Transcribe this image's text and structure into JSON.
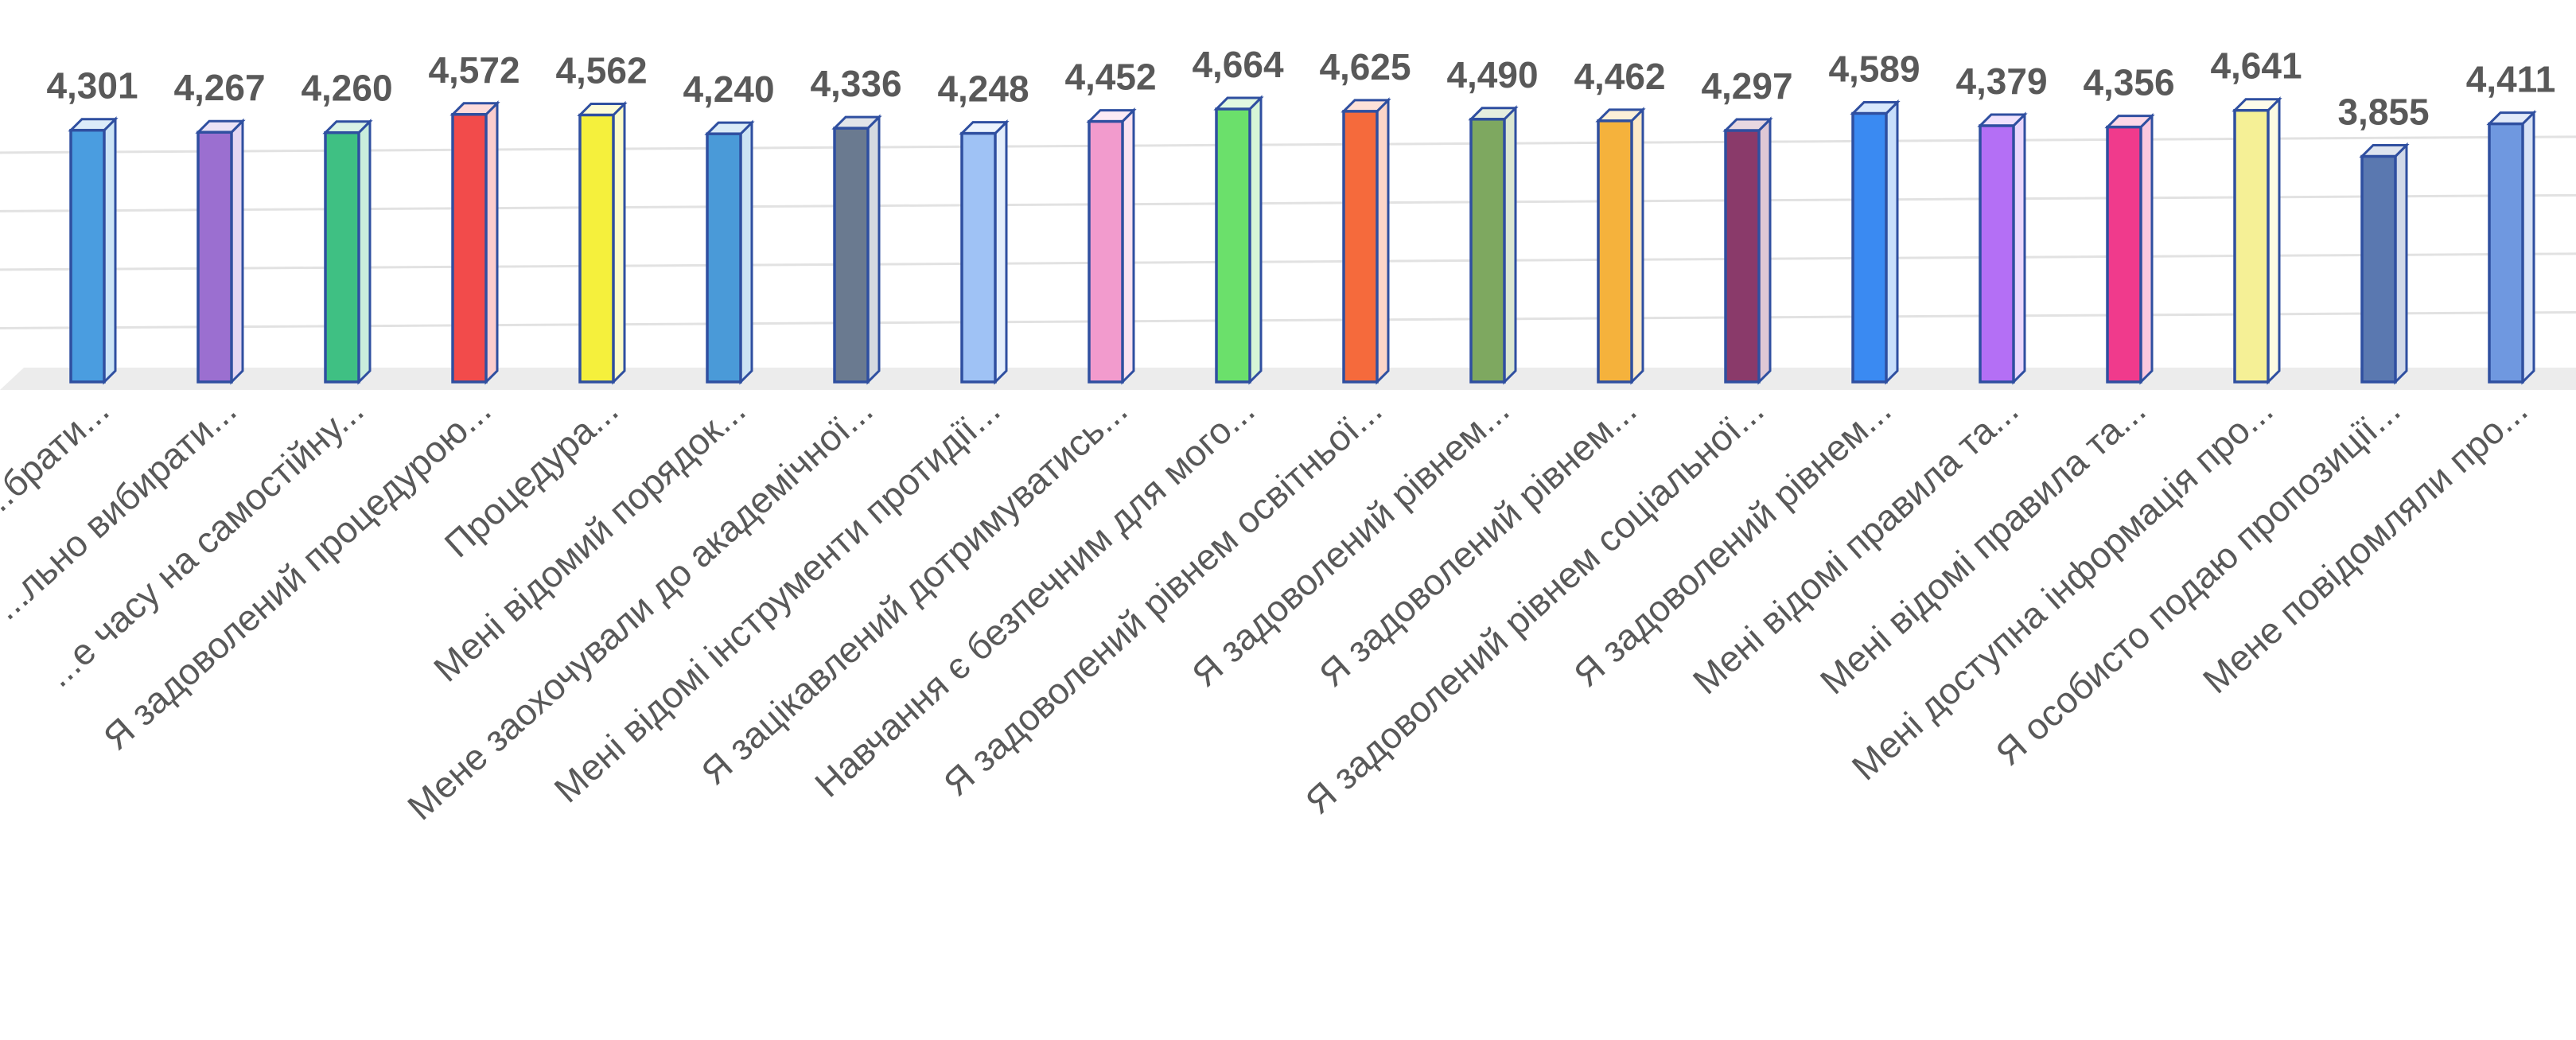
{
  "chart_data": {
    "type": "bar",
    "style": "3d-clustered-column",
    "categories": [
      "...брати...",
      "...льно вибирати...",
      "...е часу на самостійну...",
      "Я задоволений процедурою...",
      "Процедура...",
      "Мені відомий порядок...",
      "Мене заохочували до академічної...",
      "Мені відомі інструменти протидії...",
      "Я зацікавлений дотримуватись...",
      "Навчання є безпечним для мого...",
      "Я задоволений рівнем освітньої...",
      "Я задоволений рівнем...",
      "Я задоволений рівнем...",
      "Я задоволений рівнем соціальної...",
      "Я задоволений рівнем...",
      "Мені відомі правила та...",
      "Мені відомі правила та...",
      "Мені доступна інформація про...",
      "Я особисто подаю пропозиції...",
      "Мене повідомляли про..."
    ],
    "values": [
      4.301,
      4.267,
      4.26,
      4.572,
      4.562,
      4.24,
      4.336,
      4.248,
      4.452,
      4.664,
      4.625,
      4.49,
      4.462,
      4.297,
      4.589,
      4.379,
      4.356,
      4.641,
      3.855,
      4.411
    ],
    "data_labels": [
      "4,301",
      "4,267",
      "4,260",
      "4,572",
      "4,562",
      "4,240",
      "4,336",
      "4,248",
      "4,452",
      "4,664",
      "4,625",
      "4,490",
      "4,462",
      "4,297",
      "4,589",
      "4,379",
      "4,356",
      "4,641",
      "3,855",
      "4,411"
    ],
    "bar_colors": [
      "#4a9de0",
      "#9b6fd0",
      "#3fc083",
      "#f24b4b",
      "#f5f03c",
      "#4a9ad8",
      "#6a7a90",
      "#9fc2f5",
      "#f29bcd",
      "#6be06b",
      "#f56a3c",
      "#7ea860",
      "#f5b23c",
      "#8a3a6a",
      "#3a8af2",
      "#b46ff5",
      "#f03a8c",
      "#f5f096",
      "#5a78b0",
      "#6f98e0"
    ],
    "edge_color": "#2f4fa0",
    "ylim": [
      0,
      5
    ],
    "grid": true,
    "legend": "none",
    "title": "",
    "xlabel": "",
    "ylabel": ""
  }
}
